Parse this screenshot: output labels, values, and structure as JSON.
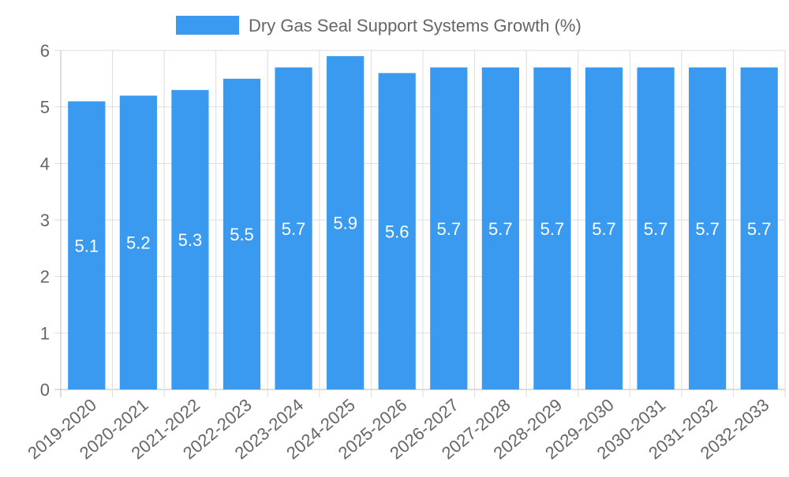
{
  "chart_data": {
    "type": "bar",
    "title": "",
    "xlabel": "",
    "ylabel": "",
    "categories": [
      "2019-2020",
      "2020-2021",
      "2021-2022",
      "2022-2023",
      "2023-2024",
      "2024-2025",
      "2025-2026",
      "2026-2027",
      "2027-2028",
      "2028-2029",
      "2029-2030",
      "2030-2031",
      "2031-2032",
      "2032-2033"
    ],
    "series": [
      {
        "name": "Dry Gas Seal Support Systems Growth (%)",
        "values": [
          5.1,
          5.2,
          5.3,
          5.5,
          5.7,
          5.9,
          5.6,
          5.7,
          5.7,
          5.7,
          5.7,
          5.7,
          5.7,
          5.7
        ],
        "color": "#3a9af0"
      }
    ],
    "data_labels": [
      "5.1",
      "5.2",
      "5.3",
      "5.5",
      "5.7",
      "5.9",
      "5.6",
      "5.7",
      "5.7",
      "5.7",
      "5.7",
      "5.7",
      "5.7",
      "5.7"
    ],
    "ylim": [
      0,
      6
    ],
    "yticks": [
      "0",
      "1",
      "2",
      "3",
      "4",
      "5",
      "6"
    ],
    "grid": true,
    "legend": "top-center",
    "colors": {
      "bar": "#3a9af0",
      "grid": "#dddddd",
      "axis": "#bbbbbb",
      "tick_text": "#666666",
      "label_text": "#ffffff"
    }
  }
}
